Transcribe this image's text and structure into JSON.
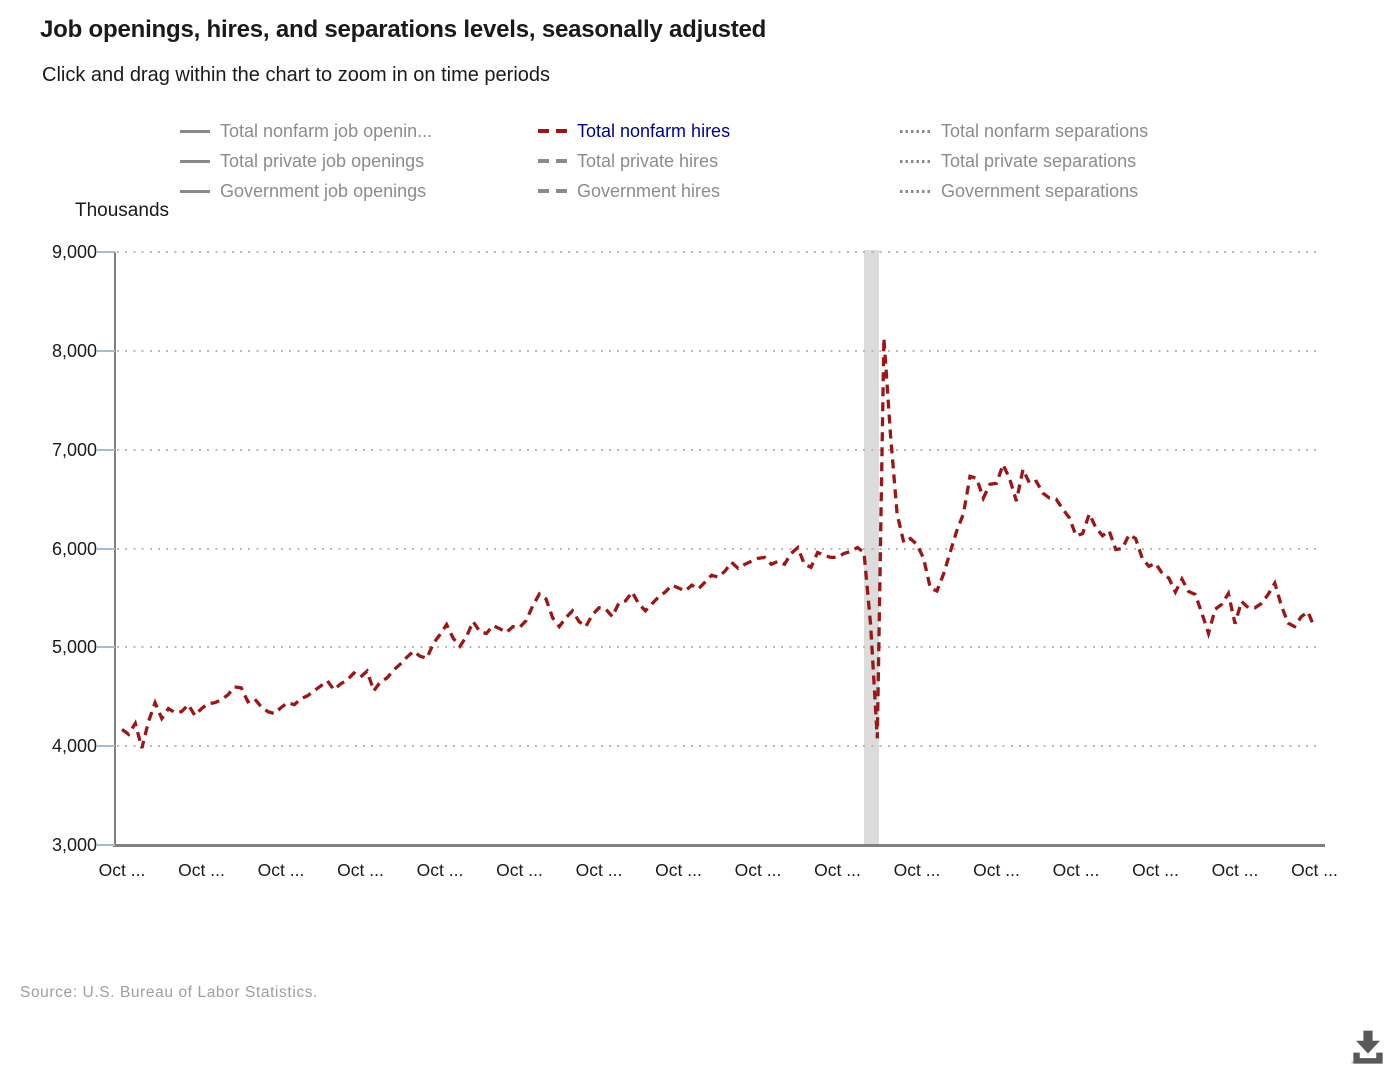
{
  "header": {
    "title": "Job openings, hires, and separations levels, seasonally adjusted",
    "subtitle": "Click and drag within the chart to zoom in on time periods"
  },
  "colors": {
    "hires_line": "#991717",
    "active_legend_text": "#00008b",
    "legend_text": "#8c8c8c",
    "axis": "#808080",
    "gridline": "#b9b9b9",
    "tick_mark": "#a3bcd1",
    "recession_band": "#dcdcdc"
  },
  "legend": {
    "columns": [
      {
        "style": "solid",
        "items": [
          {
            "label": "Total nonfarm job openin...",
            "active": false
          },
          {
            "label": "Total private job openings",
            "active": false
          },
          {
            "label": "Government job openings",
            "active": false
          }
        ]
      },
      {
        "style": "dashed",
        "items": [
          {
            "label": "Total nonfarm hires",
            "active": true
          },
          {
            "label": "Total private hires",
            "active": false
          },
          {
            "label": "Government hires",
            "active": false
          }
        ]
      },
      {
        "style": "dotted",
        "items": [
          {
            "label": "Total nonfarm separations",
            "active": false
          },
          {
            "label": "Total private separations",
            "active": false
          },
          {
            "label": "Government separations",
            "active": false
          }
        ]
      }
    ]
  },
  "source": "Source: U.S. Bureau of Labor Statistics.",
  "icons": {
    "download": "download-icon"
  },
  "chart_data": {
    "type": "line",
    "title": "Job openings, hires, and separations levels, seasonally adjusted",
    "unit_label": "Thousands",
    "ylim": [
      3000,
      9000
    ],
    "grid": "dotted-horizontal",
    "legend_position": "top",
    "y_ticks": [
      {
        "label": "9,000",
        "value": 9000
      },
      {
        "label": "8,000",
        "value": 8000
      },
      {
        "label": "7,000",
        "value": 7000
      },
      {
        "label": "6,000",
        "value": 6000
      },
      {
        "label": "5,000",
        "value": 5000
      },
      {
        "label": "4,000",
        "value": 4000
      },
      {
        "label": "3,000",
        "value": 3000
      }
    ],
    "x_tick_labels": [
      "Oct ...",
      "Oct ...",
      "Oct ...",
      "Oct ...",
      "Oct ...",
      "Oct ...",
      "Oct ...",
      "Oct ...",
      "Oct ...",
      "Oct ...",
      "Oct ...",
      "Oct ...",
      "Oct ...",
      "Oct ...",
      "Oct ...",
      "Oct ..."
    ],
    "recession_band": {
      "from_index": 112,
      "to_index": 114.2
    },
    "series": [
      {
        "name": "Total nonfarm hires",
        "color": "#991717",
        "line_style": "dashed",
        "frequency": "monthly",
        "values": [
          4170,
          4120,
          4230,
          3980,
          4250,
          4440,
          4280,
          4380,
          4340,
          4350,
          4420,
          4310,
          4380,
          4430,
          4440,
          4470,
          4520,
          4600,
          4590,
          4450,
          4480,
          4400,
          4350,
          4330,
          4390,
          4440,
          4420,
          4480,
          4510,
          4560,
          4610,
          4660,
          4570,
          4630,
          4670,
          4740,
          4700,
          4760,
          4560,
          4650,
          4690,
          4770,
          4830,
          4900,
          4960,
          4910,
          4890,
          5040,
          5130,
          5230,
          5090,
          5010,
          5110,
          5260,
          5160,
          5140,
          5220,
          5190,
          5150,
          5210,
          5200,
          5270,
          5420,
          5540,
          5490,
          5300,
          5210,
          5300,
          5370,
          5260,
          5210,
          5330,
          5400,
          5390,
          5310,
          5450,
          5470,
          5560,
          5440,
          5370,
          5440,
          5510,
          5560,
          5630,
          5600,
          5570,
          5630,
          5590,
          5660,
          5730,
          5710,
          5770,
          5860,
          5800,
          5840,
          5870,
          5900,
          5910,
          5840,
          5870,
          5840,
          5950,
          6010,
          5840,
          5810,
          5960,
          5930,
          5910,
          5910,
          5950,
          5970,
          6010,
          5960,
          5230,
          4080,
          8130,
          7150,
          6350,
          6060,
          6100,
          6040,
          5900,
          5600,
          5570,
          5740,
          5960,
          6180,
          6350,
          6730,
          6710,
          6510,
          6650,
          6660,
          6850,
          6700,
          6480,
          6800,
          6660,
          6680,
          6560,
          6510,
          6500,
          6400,
          6310,
          6130,
          6150,
          6350,
          6210,
          6130,
          6180,
          5990,
          6000,
          6140,
          6100,
          5900,
          5820,
          5850,
          5750,
          5700,
          5560,
          5690,
          5565,
          5535,
          5345,
          5140,
          5385,
          5435,
          5545,
          5240,
          5465,
          5400,
          5400,
          5445,
          5535,
          5650,
          5420,
          5245,
          5210,
          5310,
          5360,
          5200
        ]
      }
    ]
  }
}
